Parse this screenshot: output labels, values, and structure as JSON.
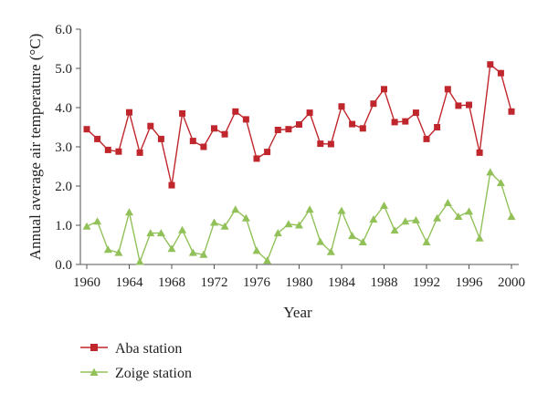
{
  "chart_data": {
    "type": "line",
    "xlabel": "Year",
    "ylabel": "Annual average air temperature (°C)",
    "xlim": [
      1960,
      2001
    ],
    "ylim": [
      0,
      6
    ],
    "x_ticks": [
      "1960",
      "1964",
      "1968",
      "1972",
      "1976",
      "1980",
      "1984",
      "1988",
      "1992",
      "1996",
      "2000"
    ],
    "x_tick_values": [
      1960,
      1964,
      1968,
      1972,
      1976,
      1980,
      1984,
      1988,
      1992,
      1996,
      2000
    ],
    "y_ticks": [
      "0.0",
      "1.0",
      "2.0",
      "3.0",
      "4.0",
      "5.0",
      "6.0"
    ],
    "y_tick_values": [
      0,
      1,
      2,
      3,
      4,
      5,
      6
    ],
    "grid": false,
    "legend_position": "bottom-left",
    "x": [
      1960,
      1961,
      1962,
      1963,
      1964,
      1965,
      1966,
      1967,
      1968,
      1969,
      1970,
      1971,
      1972,
      1973,
      1974,
      1975,
      1976,
      1977,
      1978,
      1979,
      1980,
      1981,
      1982,
      1983,
      1984,
      1985,
      1986,
      1987,
      1988,
      1989,
      1990,
      1991,
      1992,
      1993,
      1994,
      1995,
      1996,
      1997,
      1998,
      1999,
      2000
    ],
    "series": [
      {
        "name": "Aba station",
        "color": "#c0272d",
        "marker": "square",
        "values": [
          3.45,
          3.2,
          2.92,
          2.88,
          3.88,
          2.85,
          3.53,
          3.2,
          2.02,
          3.85,
          3.15,
          3.0,
          3.47,
          3.32,
          3.9,
          3.7,
          2.7,
          2.87,
          3.43,
          3.45,
          3.57,
          3.87,
          3.08,
          3.07,
          4.03,
          3.58,
          3.47,
          4.1,
          4.47,
          3.63,
          3.65,
          3.87,
          3.2,
          3.5,
          4.47,
          4.05,
          4.07,
          2.85,
          5.1,
          4.88,
          3.9
        ]
      },
      {
        "name": "Zoige station",
        "color": "#92c159",
        "marker": "triangle",
        "values": [
          0.97,
          1.1,
          0.38,
          0.3,
          1.33,
          0.07,
          0.8,
          0.8,
          0.4,
          0.88,
          0.3,
          0.25,
          1.07,
          0.97,
          1.4,
          1.18,
          0.35,
          0.1,
          0.8,
          1.03,
          1.0,
          1.4,
          0.58,
          0.32,
          1.37,
          0.73,
          0.57,
          1.15,
          1.5,
          0.87,
          1.1,
          1.13,
          0.57,
          1.18,
          1.57,
          1.22,
          1.35,
          0.67,
          2.35,
          2.08,
          1.22
        ]
      }
    ]
  }
}
